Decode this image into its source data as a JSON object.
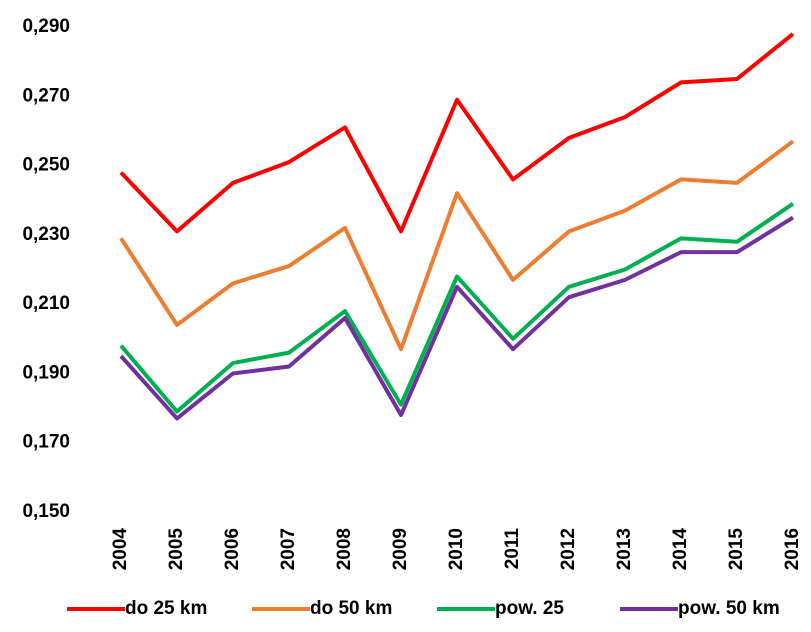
{
  "chart_data": {
    "type": "line",
    "categories": [
      "2004",
      "2005",
      "2006",
      "2007",
      "2008",
      "2009",
      "2010",
      "2011",
      "2012",
      "2013",
      "2014",
      "2015",
      "2016"
    ],
    "series": [
      {
        "name": "do 25 km",
        "color": "#ff0000",
        "values": [
          0.248,
          0.231,
          0.245,
          0.251,
          0.261,
          0.231,
          0.269,
          0.246,
          0.258,
          0.264,
          0.274,
          0.275,
          0.288
        ]
      },
      {
        "name": "do 50 km",
        "color": "#ed7d31",
        "values": [
          0.229,
          0.204,
          0.216,
          0.221,
          0.232,
          0.197,
          0.242,
          0.217,
          0.231,
          0.237,
          0.246,
          0.245,
          0.257
        ]
      },
      {
        "name": "pow. 25",
        "color": "#00b050",
        "values": [
          0.198,
          0.179,
          0.193,
          0.196,
          0.208,
          0.181,
          0.218,
          0.2,
          0.215,
          0.22,
          0.229,
          0.228,
          0.239
        ]
      },
      {
        "name": "pow. 50 km",
        "color": "#7030a0",
        "values": [
          0.195,
          0.177,
          0.19,
          0.192,
          0.206,
          0.178,
          0.215,
          0.197,
          0.212,
          0.217,
          0.225,
          0.225,
          0.235
        ]
      }
    ],
    "ylim": [
      0.15,
      0.29
    ],
    "yticks": [
      {
        "value": 0.15,
        "label": "0,150"
      },
      {
        "value": 0.17,
        "label": "0,170"
      },
      {
        "value": 0.19,
        "label": "0,190"
      },
      {
        "value": 0.21,
        "label": "0,210"
      },
      {
        "value": 0.23,
        "label": "0,230"
      },
      {
        "value": 0.25,
        "label": "0,250"
      },
      {
        "value": 0.27,
        "label": "0,270"
      },
      {
        "value": 0.29,
        "label": "0,290"
      }
    ],
    "grid": false,
    "legend": "bottom"
  }
}
